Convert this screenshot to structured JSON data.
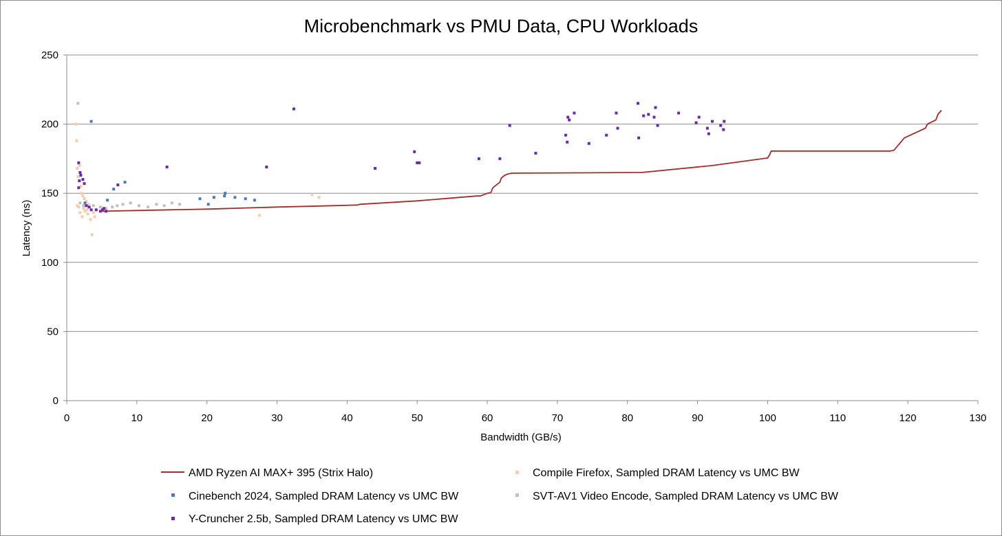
{
  "chart_data": {
    "type": "scatter",
    "title": "Microbenchmark vs PMU Data, CPU Workloads",
    "xlabel": "Bandwidth (GB/s)",
    "ylabel": "Latency (ns)",
    "xlim": [
      0,
      130
    ],
    "ylim": [
      0,
      250
    ],
    "x_ticks": [
      0,
      10,
      20,
      30,
      40,
      50,
      60,
      70,
      80,
      90,
      100,
      110,
      120,
      130
    ],
    "y_ticks": [
      0,
      50,
      100,
      150,
      200,
      250
    ],
    "x_tick_labels": [
      "0",
      "10",
      "20",
      "30",
      "40",
      "50",
      "60",
      "70",
      "80",
      "90",
      "100",
      "110",
      "120",
      "130"
    ],
    "y_tick_labels": [
      "0",
      "50",
      "100",
      "150",
      "200",
      "250"
    ],
    "grid": "horizontal",
    "legend_position": "bottom",
    "series": [
      {
        "name": "AMD Ryzen AI MAX+ 395 (Strix Halo)",
        "kind": "line",
        "color": "#a52a2a",
        "x": [
          5,
          10,
          20,
          30,
          38,
          41.5,
          41.8,
          50,
          58.5,
          59,
          60,
          60.5,
          60.8,
          61.8,
          62,
          62.5,
          63,
          63.5,
          82,
          92,
          100,
          100.3,
          100.5,
          117.5,
          118,
          118.5,
          119.5,
          122.5,
          122.8,
          124,
          124.3,
          124.8
        ],
        "y": [
          137,
          137.5,
          138.5,
          140,
          141,
          141.5,
          142,
          144.5,
          148,
          148,
          150,
          150.5,
          154,
          158,
          161,
          163,
          164,
          164.5,
          165,
          170,
          175.5,
          178,
          180.5,
          180.5,
          181,
          184,
          190,
          197,
          200,
          203,
          207,
          210
        ]
      },
      {
        "name": "Compile Firefox, Sampled DRAM Latency vs UMC BW",
        "kind": "scatter",
        "color": "#f8cbad",
        "x": [
          1.3,
          1.4,
          1.5,
          1.6,
          1.8,
          2.0,
          2.1,
          2.3,
          2.5,
          2.8,
          1.5,
          1.7,
          1.9,
          2.2,
          2.4,
          2.6,
          3.0,
          3.6,
          3.4,
          3.1,
          2.9,
          3.8,
          4.0,
          35.0,
          36.0,
          27.5
        ],
        "y": [
          200,
          188,
          168,
          162,
          170,
          155,
          150,
          148,
          146,
          144,
          141,
          140,
          136,
          133,
          139,
          137,
          135,
          120,
          131,
          142,
          138,
          136,
          133,
          149,
          147,
          134
        ]
      },
      {
        "name": "Cinebench 2024, Sampled DRAM Latency vs UMC BW",
        "kind": "scatter",
        "color": "#4e79b9",
        "x": [
          3.5,
          6.7,
          8.3,
          5.8,
          2.6,
          19.0,
          21.0,
          22.5,
          24.0,
          25.5,
          26.8,
          22.6,
          20.2
        ],
        "y": [
          202,
          153,
          158,
          145,
          143,
          146,
          147,
          148,
          147,
          146,
          145,
          150,
          142
        ]
      },
      {
        "name": "SVT-AV1 Video Encode, Sampled DRAM Latency vs UMC BW",
        "kind": "scatter",
        "color": "#bfbfbf",
        "x": [
          1.6,
          1.9,
          2.4,
          3.8,
          4.8,
          5.6,
          6.5,
          7.2,
          8.0,
          9.1,
          10.3,
          11.6,
          12.8,
          13.9,
          15.0,
          16.1
        ],
        "y": [
          215,
          143,
          141,
          141,
          140,
          139,
          140,
          141,
          142,
          143,
          141,
          140,
          142,
          141,
          143,
          142
        ]
      },
      {
        "name": "Y-Cruncher 2.5b, Sampled DRAM Latency vs UMC BW",
        "kind": "scatter",
        "color": "#6a2aa8",
        "x": [
          1.7,
          1.9,
          2.0,
          1.8,
          2.3,
          2.5,
          1.7,
          2.8,
          3.2,
          3.5,
          4.2,
          4.8,
          5.3,
          5.6,
          5.1,
          7.3,
          14.3,
          28.5,
          32.4,
          44.0,
          49.6,
          50.0,
          50.3,
          58.8,
          61.8,
          63.2,
          66.9,
          71.2,
          71.5,
          71.7,
          71.4,
          72.4,
          74.5,
          77.0,
          78.4,
          78.6,
          81.5,
          81.6,
          82.3,
          83.0,
          83.8,
          84.0,
          84.3,
          87.3,
          89.8,
          90.2,
          91.4,
          91.6,
          92.1,
          93.3,
          93.7,
          93.8
        ],
        "y": [
          172,
          165,
          163,
          159,
          160,
          157,
          154,
          141,
          140,
          138,
          138,
          137,
          139,
          137,
          138,
          156,
          169,
          169,
          211,
          168,
          180,
          172,
          172,
          175,
          175,
          199,
          179,
          192,
          205,
          203,
          187,
          208,
          186,
          192,
          208,
          197,
          215,
          190,
          206,
          207,
          205,
          212,
          199,
          208,
          201,
          205,
          197,
          193,
          202,
          199,
          196,
          202
        ]
      }
    ]
  }
}
